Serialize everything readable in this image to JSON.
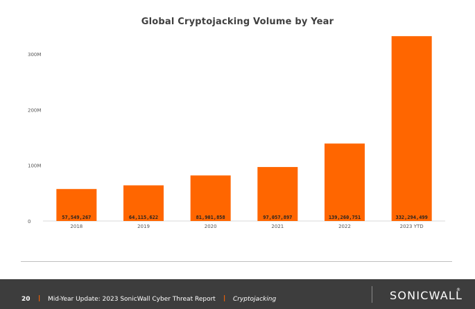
{
  "chart_data": {
    "type": "bar",
    "title": "Global Cryptojacking Volume by Year",
    "categories": [
      "2018",
      "2019",
      "2020",
      "2021",
      "2022",
      "2023 YTD"
    ],
    "values": [
      57549267,
      64115622,
      81901858,
      97057897,
      139260751,
      332294499
    ],
    "data_labels": [
      "57,549,267",
      "64,115,622",
      "81,901,858",
      "97,057,897",
      "139,260,751",
      "332,294,499"
    ],
    "y_ticks": [
      0,
      100000000,
      200000000,
      300000000
    ],
    "y_tick_labels": [
      "0",
      "100M",
      "200M",
      "300M"
    ],
    "ylim": [
      0,
      340000000
    ],
    "bar_color": "#ff6600",
    "grid": false,
    "xlabel": "",
    "ylabel": ""
  },
  "footer": {
    "page_number": "20",
    "separator": "|",
    "report_title": "Mid-Year Update: 2023 SonicWall Cyber Threat Report",
    "section": "Cryptojacking",
    "brand": "SONICWALL",
    "brand_mark": "®"
  }
}
